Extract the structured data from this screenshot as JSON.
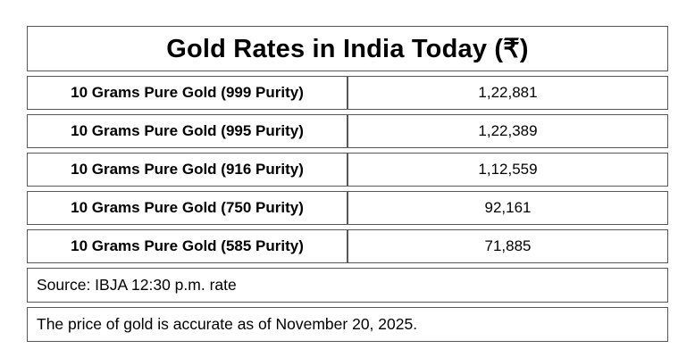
{
  "page": {
    "background": "#ffffff",
    "border_color": "#58585a",
    "text_color": "#000000"
  },
  "table": {
    "title": "Gold Rates in India Today (₹)",
    "rows": [
      {
        "label": "10 Grams Pure Gold (999 Purity)",
        "value": "1,22,881"
      },
      {
        "label": "10 Grams Pure Gold (995 Purity)",
        "value": "1,22,389"
      },
      {
        "label": "10 Grams Pure Gold (916 Purity)",
        "value": "1,12,559"
      },
      {
        "label": "10 Grams Pure Gold (750 Purity)",
        "value": "92,161"
      },
      {
        "label": "10 Grams Pure Gold (585 Purity)",
        "value": "71,885"
      }
    ],
    "footnotes": [
      "Source: IBJA 12:30 p.m. rate",
      "The price of gold is accurate as of November 20, 2025."
    ]
  },
  "chart_data": {
    "type": "table",
    "title": "Gold Rates in India Today (₹)",
    "rows": [
      [
        "10 Grams Pure Gold (999 Purity)",
        "1,22,881"
      ],
      [
        "10 Grams Pure Gold (995 Purity)",
        "1,22,389"
      ],
      [
        "10 Grams Pure Gold (916 Purity)",
        "1,12,559"
      ],
      [
        "10 Grams Pure Gold (750 Purity)",
        "92,161"
      ],
      [
        "10 Grams Pure Gold (585 Purity)",
        "71,885"
      ]
    ],
    "values": [
      122881,
      122389,
      112559,
      92161,
      71885
    ],
    "notes": [
      "Source: IBJA 12:30 p.m. rate",
      "The price of gold is accurate as of November 20, 2025."
    ]
  }
}
